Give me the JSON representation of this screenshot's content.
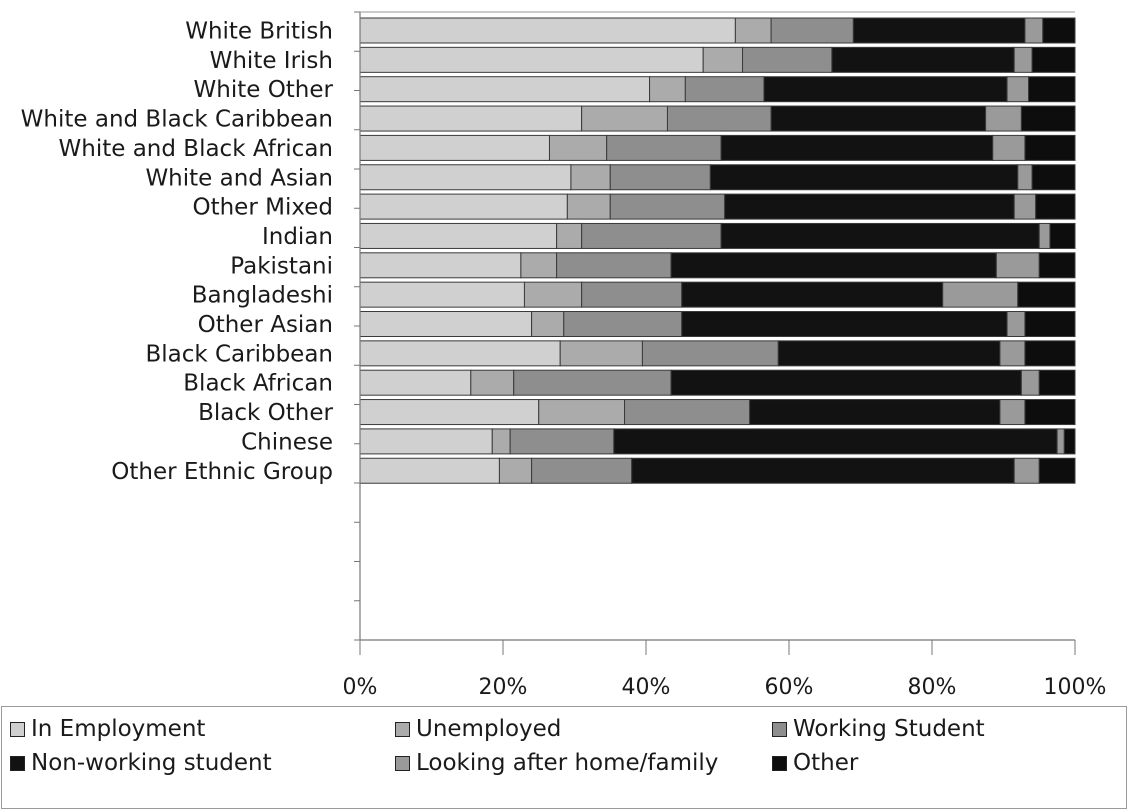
{
  "chart_data": {
    "type": "bar",
    "orientation": "horizontal",
    "stacked": "percent",
    "categories": [
      "White British",
      "White Irish",
      "White Other",
      "White and Black Caribbean",
      "White and Black African",
      "White and Asian",
      "Other Mixed",
      "Indian",
      "Pakistani",
      "Bangladeshi",
      "Other Asian",
      "Black Caribbean",
      "Black African",
      "Black Other",
      "Chinese",
      "Other Ethnic Group"
    ],
    "series": [
      {
        "name": "In Employment",
        "color": "#d0d0d0",
        "values": [
          52.5,
          48,
          40.5,
          31,
          26.5,
          29.5,
          29,
          27.5,
          22.5,
          23,
          24,
          28,
          15.5,
          25,
          18.5,
          19.5
        ]
      },
      {
        "name": "Unemployed",
        "color": "#ababab",
        "values": [
          5,
          5.5,
          5,
          12,
          8,
          5.5,
          6,
          3.5,
          5,
          8,
          4.5,
          11.5,
          6,
          12,
          2.5,
          4.5
        ]
      },
      {
        "name": "Working Student",
        "color": "#8e8e8e",
        "values": [
          11.5,
          12.5,
          11,
          14.5,
          16,
          14,
          16,
          19.5,
          16,
          14,
          16.5,
          19,
          22,
          17.5,
          14.5,
          14
        ]
      },
      {
        "name": "Non-working student",
        "color": "#121212",
        "values": [
          24,
          25.5,
          34,
          30,
          38,
          43,
          40.5,
          44.5,
          45.5,
          36.5,
          45.5,
          31,
          49,
          35,
          62,
          53.5
        ]
      },
      {
        "name": "Looking after home/family",
        "color": "#9a9a9a",
        "values": [
          2.5,
          2.5,
          3,
          5,
          4.5,
          2,
          3,
          1.5,
          6,
          10.5,
          2.5,
          3.5,
          2.5,
          3.5,
          1,
          3.5
        ]
      },
      {
        "name": "Other",
        "color": "#0d0d0d",
        "values": [
          4.5,
          6,
          6.5,
          7.5,
          7,
          6,
          5.5,
          3.5,
          5,
          8,
          7,
          7,
          5,
          7,
          1.5,
          5
        ]
      }
    ],
    "x_ticks": [
      "0%",
      "20%",
      "40%",
      "60%",
      "80%",
      "100%"
    ],
    "xlim": [
      0,
      100
    ],
    "legend_position": "bottom",
    "grid": false
  }
}
